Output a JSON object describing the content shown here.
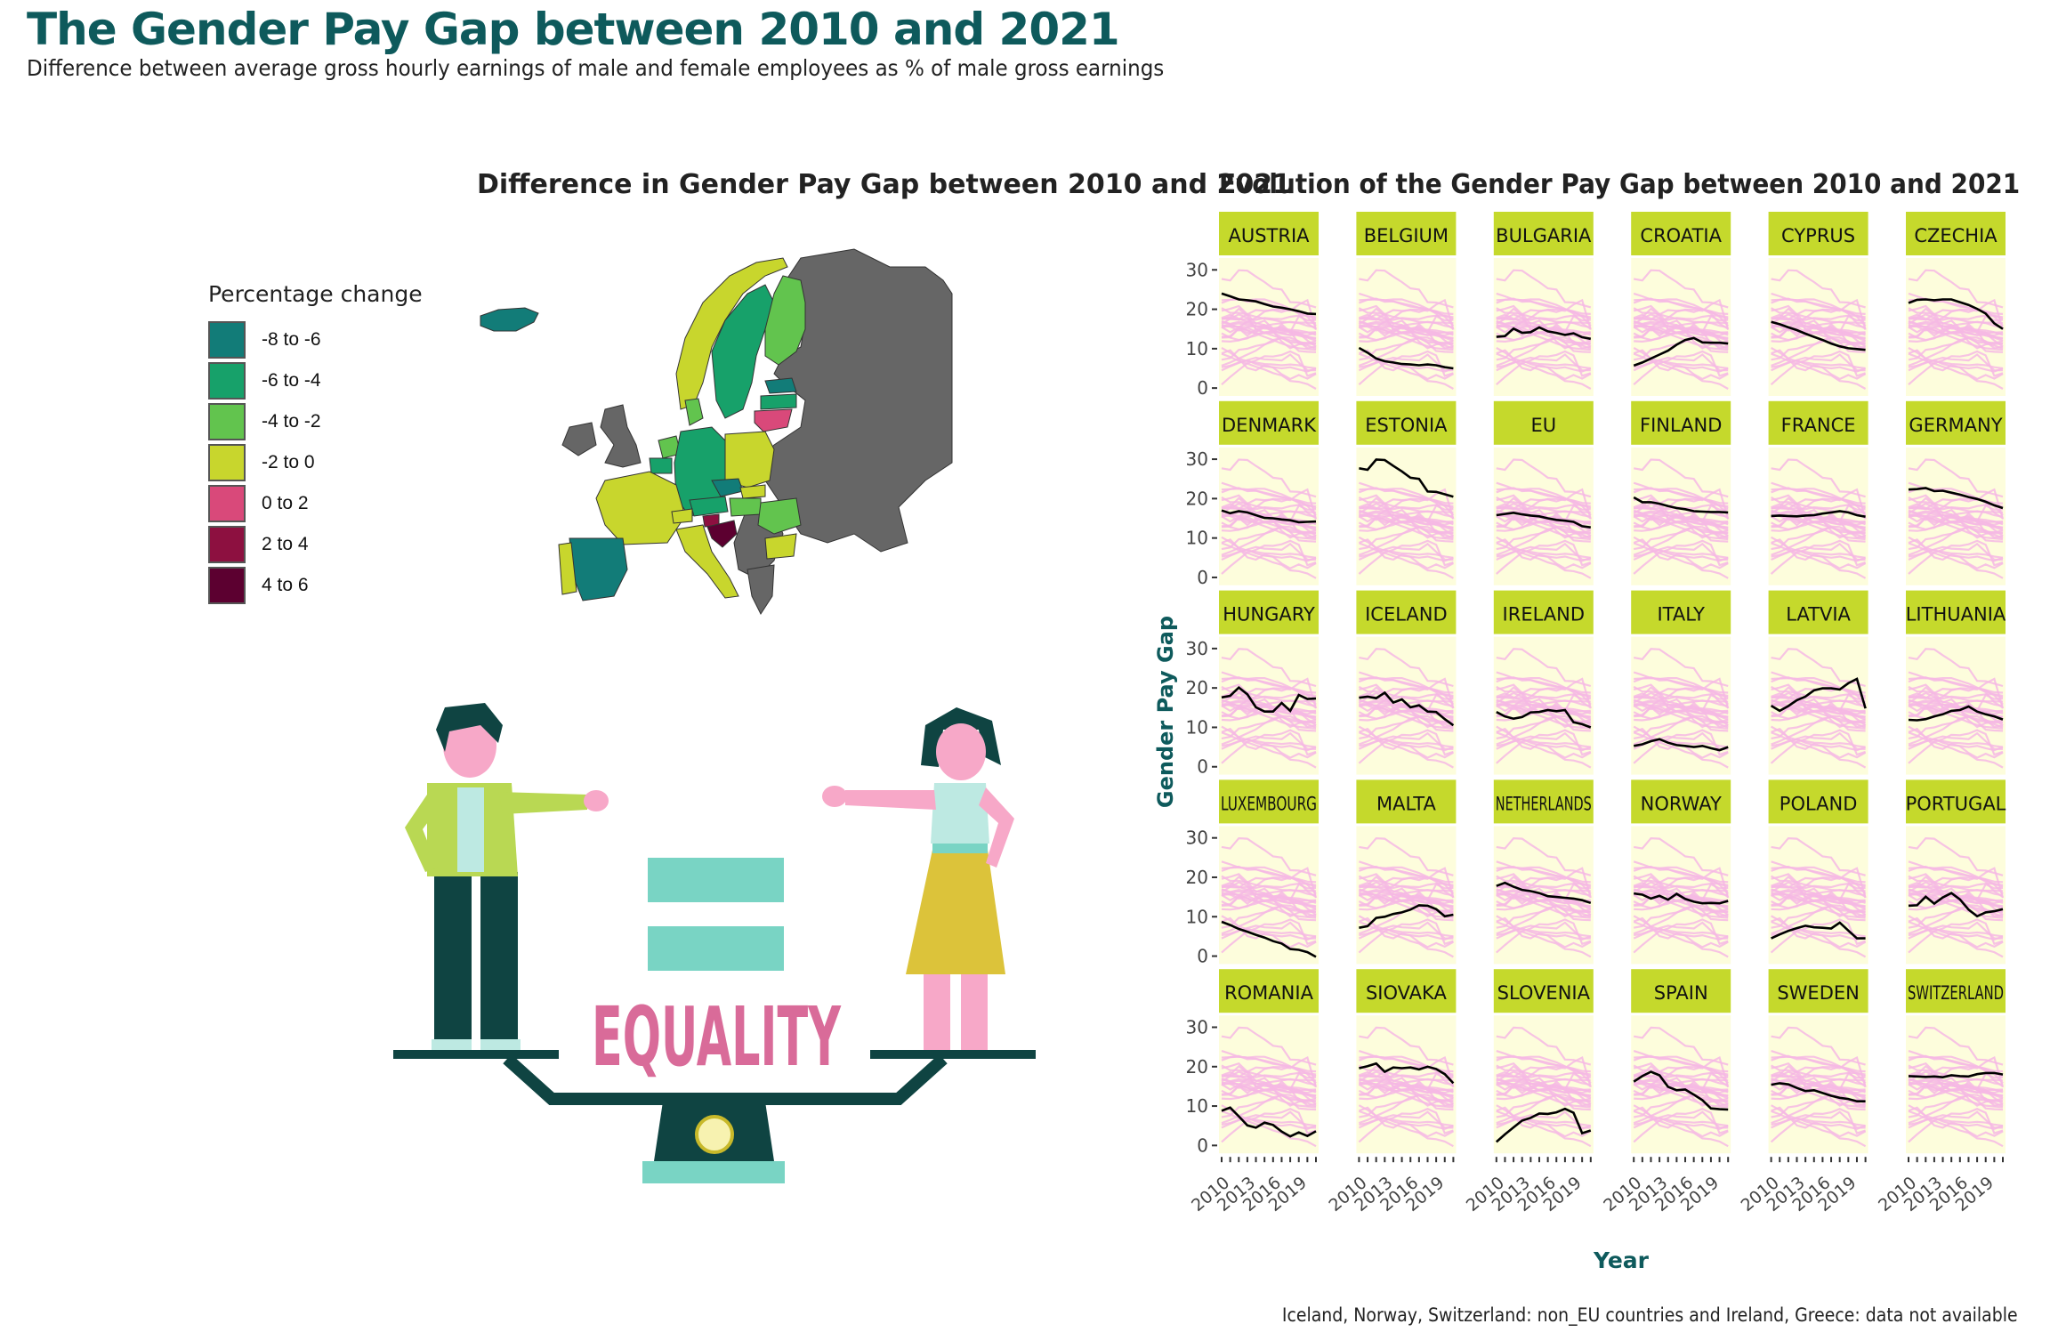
{
  "title": "The Gender Pay Gap between 2010 and 2021",
  "subtitle": "Difference between average gross hourly earnings of male and female employees as % of male gross earnings",
  "caption": "Iceland, Norway, Switzerland: non_EU countries and Ireland, Greece: data not available",
  "illustration": {
    "word": "EQUALITY"
  },
  "colors": {
    "title": "#0e5a5c",
    "strip_bg": "#c5d92c",
    "panel_bg": "#fdfddc",
    "other_countries": "#f6b8e4",
    "highlight_line": "#000000",
    "no_data": "#666666"
  },
  "chart_data": [
    {
      "type": "choropleth",
      "title": "Difference in Gender Pay Gap between 2010 and 2021",
      "legend": {
        "title": "Percentage change",
        "placement": "left",
        "bins": [
          {
            "label": "-8 to -6",
            "color": "#127c78"
          },
          {
            "label": "-6 to -4",
            "color": "#17a16a"
          },
          {
            "label": "-4 to -2",
            "color": "#62c44e"
          },
          {
            "label": "-2 to 0",
            "color": "#c8d62d"
          },
          {
            "label": "0 to 2",
            "color": "#d9497a"
          },
          {
            "label": "2 to 4",
            "color": "#8d1040"
          },
          {
            "label": "4 to 6",
            "color": "#5c0030"
          }
        ]
      }
    },
    {
      "type": "line",
      "title": "Evolution of the Gender Pay Gap between 2010 and 2021",
      "xlabel": "Year",
      "ylabel": "Gender Pay Gap",
      "x": [
        2010,
        2011,
        2012,
        2013,
        2014,
        2015,
        2016,
        2017,
        2018,
        2019,
        2020,
        2021
      ],
      "x_ticks": [
        "2010",
        "2013",
        "2016",
        "2019"
      ],
      "ylim": [
        -2,
        33
      ],
      "y_ticks": [
        "0",
        "10",
        "20",
        "30"
      ],
      "grid": false,
      "facets": [
        {
          "name": "AUSTRIA",
          "values": [
            24,
            23.3,
            22.5,
            22.3,
            22,
            21.3,
            20.7,
            20.4,
            20,
            19.5,
            18.9,
            18.8
          ]
        },
        {
          "name": "BELGIUM",
          "values": [
            10.2,
            9,
            7.5,
            6.8,
            6.5,
            6.1,
            6,
            5.8,
            6,
            5.8,
            5.3,
            5
          ]
        },
        {
          "name": "BULGARIA",
          "values": [
            13,
            13.2,
            15.1,
            14,
            14.2,
            15.4,
            14.4,
            14,
            13.5,
            13.9,
            12.9,
            12.5
          ]
        },
        {
          "name": "CROATIA",
          "values": [
            5.7,
            6.5,
            7.5,
            8.5,
            9.5,
            11,
            12.2,
            12.7,
            11.6,
            11.5,
            11.5,
            11.3
          ]
        },
        {
          "name": "CYPRUS",
          "values": [
            16.8,
            16.2,
            15.4,
            14.7,
            13.8,
            13,
            12.2,
            11.3,
            10.6,
            10.1,
            9.9,
            9.7
          ]
        },
        {
          "name": "CZECHIA",
          "values": [
            21.6,
            22.4,
            22.5,
            22.3,
            22.5,
            22.5,
            21.8,
            21.1,
            20.1,
            18.9,
            16.4,
            15
          ]
        },
        {
          "name": "DENMARK",
          "values": [
            17,
            16.3,
            16.8,
            16.5,
            15.8,
            15.1,
            15,
            14.7,
            14.5,
            14,
            14.1,
            14.2
          ]
        },
        {
          "name": "ESTONIA",
          "values": [
            27.7,
            27.3,
            29.9,
            29.8,
            28.3,
            26.9,
            25.3,
            25,
            21.8,
            21.7,
            21.1,
            20.5
          ]
        },
        {
          "name": "EU",
          "values": [
            15.8,
            16.1,
            16.4,
            16,
            15.7,
            15.5,
            15,
            14.6,
            14.4,
            14.1,
            13,
            12.7
          ]
        },
        {
          "name": "FINLAND",
          "values": [
            20.3,
            19.1,
            19.1,
            18.7,
            18.1,
            17.6,
            17.3,
            16.8,
            16.7,
            16.6,
            16.6,
            16.5
          ]
        },
        {
          "name": "FRANCE",
          "values": [
            15.6,
            15.7,
            15.6,
            15.5,
            15.7,
            15.8,
            16.2,
            16.5,
            16.8,
            16.5,
            15.8,
            15.4
          ]
        },
        {
          "name": "GERMANY",
          "values": [
            22.3,
            22.4,
            22.7,
            21.9,
            22,
            21.5,
            21,
            20.4,
            19.9,
            19.2,
            18.3,
            17.6
          ]
        },
        {
          "name": "HUNGARY",
          "values": [
            17.6,
            18,
            20.1,
            18.4,
            15.1,
            14,
            14,
            16.2,
            14.2,
            18.2,
            17.2,
            17.3
          ]
        },
        {
          "name": "ICELAND",
          "values": [
            17.5,
            17.8,
            17.4,
            18.8,
            16.3,
            17.1,
            15.1,
            15.6,
            14,
            13.9,
            12.1,
            10.5
          ]
        },
        {
          "name": "IRELAND",
          "values": [
            13.9,
            12.8,
            12.2,
            12.6,
            13.8,
            13.9,
            14.4,
            14.1,
            14.4,
            11.3,
            10.8,
            10
          ]
        },
        {
          "name": "ITALY",
          "values": [
            5.3,
            5.7,
            6.5,
            7,
            6.1,
            5.5,
            5.3,
            5,
            5.3,
            4.7,
            4.2,
            5
          ]
        },
        {
          "name": "LATVIA",
          "values": [
            15.5,
            14.2,
            15.4,
            16.9,
            17.8,
            19.4,
            19.9,
            19.9,
            19.6,
            21.2,
            22.3,
            14.8
          ]
        },
        {
          "name": "LITHUANIA",
          "values": [
            11.9,
            11.8,
            12.1,
            12.8,
            13.3,
            14.2,
            14.4,
            15.3,
            14,
            13.3,
            12.8,
            12
          ]
        },
        {
          "name": "LUXEMBOURG",
          "values": [
            8.7,
            7.9,
            6.9,
            6.2,
            5.4,
            4.7,
            3.8,
            3.2,
            1.8,
            1.6,
            1.0,
            -0.2
          ]
        },
        {
          "name": "MALTA",
          "values": [
            7.2,
            7.6,
            9.7,
            10,
            10.7,
            11.1,
            11.8,
            12.9,
            12.8,
            11.9,
            10.1,
            10.5
          ]
        },
        {
          "name": "NETHERLANDS",
          "values": [
            17.8,
            18.6,
            17.6,
            16.8,
            16.5,
            16,
            15.2,
            15,
            14.8,
            14.6,
            14.2,
            13.5
          ]
        },
        {
          "name": "NORWAY",
          "values": [
            15.9,
            15.6,
            14.6,
            15.3,
            14.3,
            15.8,
            14.5,
            13.8,
            13.4,
            13.5,
            13.4,
            14
          ]
        },
        {
          "name": "POLAND",
          "values": [
            4.5,
            5.5,
            6.4,
            7.1,
            7.7,
            7.3,
            7.2,
            7,
            8.5,
            6.5,
            4.5,
            4.5
          ]
        },
        {
          "name": "PORTUGAL",
          "values": [
            12.8,
            12.9,
            15.1,
            13.3,
            14.9,
            16,
            14.4,
            11.8,
            10.1,
            11.1,
            11.4,
            11.9
          ]
        },
        {
          "name": "ROMANIA",
          "values": [
            8.8,
            9.6,
            7.4,
            5.1,
            4.5,
            5.8,
            5.2,
            3.5,
            2.3,
            3.3,
            2.4,
            3.6
          ]
        },
        {
          "name": "SIOVAKA",
          "values": [
            19.6,
            20.1,
            20.8,
            18.7,
            19.8,
            19.6,
            19.8,
            19.3,
            20,
            19.4,
            18.1,
            15.8
          ]
        },
        {
          "name": "SLOVENIA",
          "values": [
            0.9,
            2.8,
            4.6,
            6.3,
            7,
            8.1,
            8,
            8.4,
            9.3,
            8.3,
            3.1,
            3.8
          ]
        },
        {
          "name": "SPAIN",
          "values": [
            16.2,
            17.6,
            18.7,
            17.8,
            14.9,
            14,
            14.2,
            12.9,
            11.5,
            9.4,
            9.2,
            9.1
          ]
        },
        {
          "name": "SWEDEN",
          "values": [
            15.4,
            15.8,
            15.5,
            14.6,
            13.8,
            14,
            13.3,
            12.6,
            12.1,
            11.8,
            11.2,
            11.2
          ]
        },
        {
          "name": "SWITZERLAND",
          "values": [
            17.6,
            17.5,
            17.4,
            17.5,
            17.3,
            17.8,
            17.6,
            17.5,
            18.1,
            18.4,
            18.4,
            18
          ]
        }
      ]
    }
  ]
}
